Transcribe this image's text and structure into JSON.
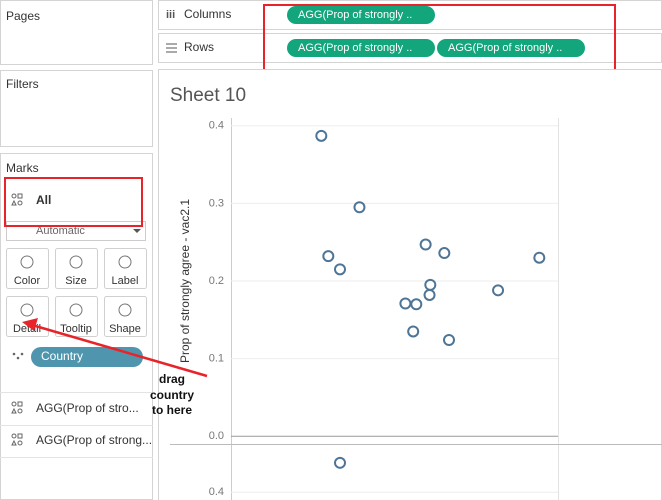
{
  "shelves": {
    "pages": "Pages",
    "filters": "Filters",
    "columns": {
      "label": "Columns",
      "pills": [
        "AGG(Prop of strongly .."
      ]
    },
    "rows": {
      "label": "Rows",
      "pills": [
        "AGG(Prop of strongly ..",
        "AGG(Prop of strongly .."
      ]
    }
  },
  "marks": {
    "title": "Marks",
    "card": "All",
    "mark_type": "Automatic",
    "buttons": [
      "Color",
      "Size",
      "Label",
      "Detail",
      "Tooltip",
      "Shape"
    ],
    "detail_pill": "Country",
    "fields": [
      "AGG(Prop of stro...",
      "AGG(Prop of strong..."
    ]
  },
  "annotation": [
    "drag",
    "country",
    "to here"
  ],
  "sheet_title": "Sheet 10",
  "chart_data": [
    {
      "type": "scatter",
      "y_label": "Prop of strongly agree - vac2.1",
      "x": [
        0.196,
        0.245,
        0.205,
        0.22,
        0.33,
        0.354,
        0.336,
        0.335,
        0.304,
        0.318,
        0.423,
        0.476,
        0.314,
        0.36
      ],
      "values": [
        0.387,
        0.295,
        0.232,
        0.215,
        0.247,
        0.236,
        0.195,
        0.182,
        0.171,
        0.17,
        0.188,
        0.23,
        0.135,
        0.124
      ],
      "xlim": [
        0.08,
        0.5
      ],
      "ylim": [
        -0.01,
        0.41
      ],
      "yticks": [
        {
          "value": 0,
          "label": "0.0"
        },
        0.1,
        0.2,
        0.3,
        0.4
      ],
      "grid": true,
      "color": "#4f7596"
    },
    {
      "type": "scatter",
      "x": [
        0.22
      ],
      "values": [
        0.438
      ],
      "xlim": [
        0.08,
        0.5
      ],
      "ylim": [
        0.39,
        0.461
      ],
      "yticks": [
        0.4
      ],
      "grid": true,
      "color": "#4f7596"
    }
  ]
}
